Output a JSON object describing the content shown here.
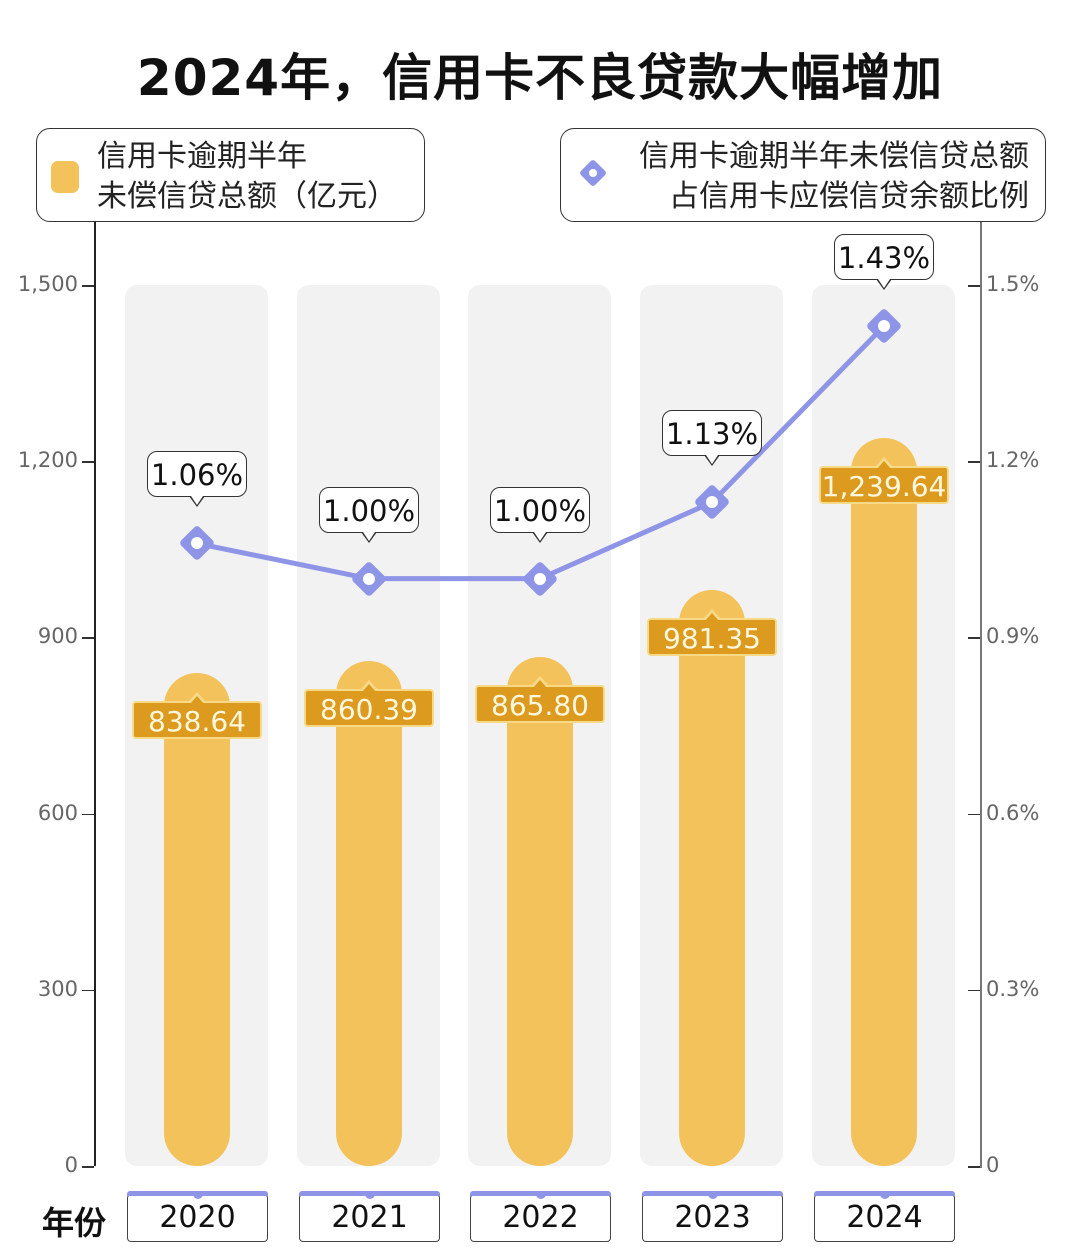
{
  "title": "2024年，信用卡不良贷款大幅增加",
  "legend": {
    "bar": {
      "line1": "信用卡逾期半年",
      "line2": "未偿信贷总额（亿元）",
      "color": "#f3c25a",
      "icon": "rounded-square-icon"
    },
    "line": {
      "line1": "信用卡逾期半年未偿信贷总额",
      "line2": "占信用卡应偿信贷余额比例",
      "color": "#8f95e6",
      "icon": "diamond-marker-icon"
    }
  },
  "left_axis": {
    "ticks": [
      "1,500",
      "1,200",
      "900",
      "600",
      "300",
      "0"
    ]
  },
  "right_axis": {
    "ticks": [
      "1.5%",
      "1.2%",
      "0.9%",
      "0.6%",
      "0.3%",
      "0"
    ]
  },
  "x_axis": {
    "title": "年份",
    "labels": [
      "2020",
      "2021",
      "2022",
      "2023",
      "2024"
    ]
  },
  "bars": [
    {
      "year": "2020",
      "value": 838.64,
      "label": "838.64"
    },
    {
      "year": "2021",
      "value": 860.39,
      "label": "860.39"
    },
    {
      "year": "2022",
      "value": 865.8,
      "label": "865.80"
    },
    {
      "year": "2023",
      "value": 981.35,
      "label": "981.35"
    },
    {
      "year": "2024",
      "value": 1239.64,
      "label": "1,239.64"
    }
  ],
  "points": [
    {
      "year": "2020",
      "value": 1.06,
      "label": "1.06%"
    },
    {
      "year": "2021",
      "value": 1.0,
      "label": "1.00%"
    },
    {
      "year": "2022",
      "value": 1.0,
      "label": "1.00%"
    },
    {
      "year": "2023",
      "value": 1.13,
      "label": "1.13%"
    },
    {
      "year": "2024",
      "value": 1.43,
      "label": "1.43%"
    }
  ],
  "colors": {
    "bar": "#f3c25a",
    "bar_label_bg": "#dc9a1e",
    "line": "#8f95e6",
    "column_bg": "#f2f2f2"
  },
  "chart_data": {
    "type": "bar",
    "title": "2024年，信用卡不良贷款大幅增加",
    "categories": [
      "2020",
      "2021",
      "2022",
      "2023",
      "2024"
    ],
    "series": [
      {
        "name": "信用卡逾期半年未偿信贷总额（亿元）",
        "type": "bar",
        "axis": "left",
        "values": [
          838.64,
          860.39,
          865.8,
          981.35,
          1239.64
        ]
      },
      {
        "name": "信用卡逾期半年未偿信贷总额占信用卡应偿信贷余额比例",
        "type": "line",
        "axis": "right",
        "unit": "%",
        "values": [
          1.06,
          1.0,
          1.0,
          1.13,
          1.43
        ]
      }
    ],
    "xlabel": "年份",
    "ylabel": "",
    "ylim": [
      0,
      1500
    ],
    "ylim_right": [
      0,
      1.5
    ],
    "yticks": [
      0,
      300,
      600,
      900,
      1200,
      1500
    ],
    "yticks_right": [
      "0",
      "0.3%",
      "0.6%",
      "0.9%",
      "1.2%",
      "1.5%"
    ],
    "grid": false,
    "legend_position": "top"
  }
}
